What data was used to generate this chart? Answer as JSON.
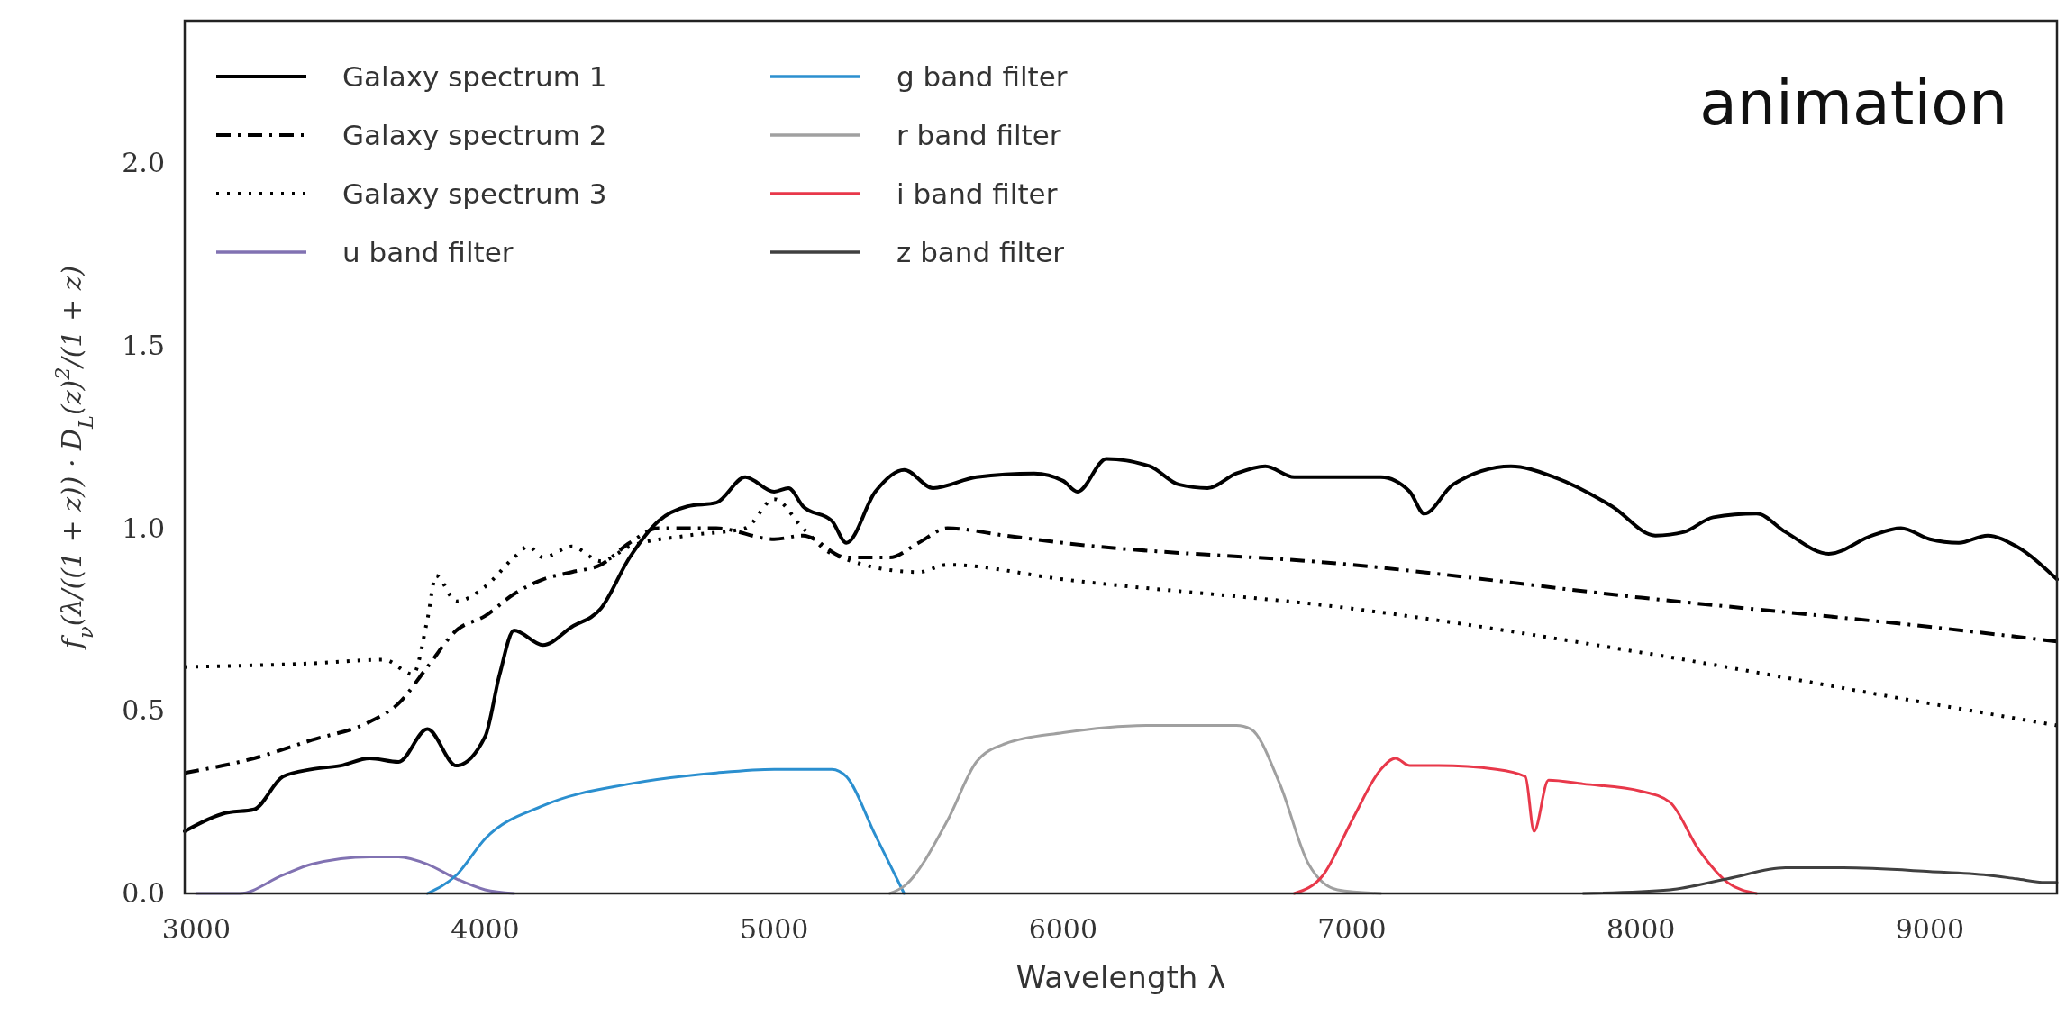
{
  "chart_data": {
    "type": "line",
    "xlabel": "Wavelength λ",
    "ylabel": "f$_{ν}$(λ/((1 + z)) · D$_{L}$(z)$^{2}$/(1 + z)",
    "annotations": [
      "animation"
    ],
    "xlim": [
      2960,
      9440
    ],
    "ylim": [
      0,
      2.39
    ],
    "xticks": [
      3000,
      4000,
      5000,
      6000,
      7000,
      8000,
      9000
    ],
    "yticks": [
      {
        "value": 0,
        "label": "0.0"
      },
      {
        "value": 0.5,
        "label": "0.5"
      },
      {
        "value": 1,
        "label": "1.0"
      },
      {
        "value": 1.5,
        "label": "1.5"
      },
      {
        "value": 2,
        "label": "2.0"
      }
    ],
    "grid": false,
    "legend": "top left",
    "series": [
      {
        "name": "Galaxy spectrum 1",
        "color": "#000000",
        "line_style": "solid",
        "x": [
          2960,
          3100,
          3200,
          3300,
          3400,
          3500,
          3600,
          3700,
          3800,
          3900,
          4000,
          4050,
          4100,
          4200,
          4300,
          4400,
          4500,
          4600,
          4700,
          4800,
          4900,
          5000,
          5050,
          5100,
          5200,
          5250,
          5350,
          5450,
          5550,
          5700,
          5900,
          6000,
          6050,
          6150,
          6300,
          6400,
          6500,
          6600,
          6700,
          6800,
          7000,
          7100,
          7200,
          7250,
          7350,
          7550,
          7700,
          7900,
          8050,
          8150,
          8250,
          8400,
          8500,
          8650,
          8800,
          8900,
          9000,
          9100,
          9200,
          9300,
          9440
        ],
        "values": [
          0.17,
          0.22,
          0.23,
          0.32,
          0.34,
          0.35,
          0.37,
          0.36,
          0.45,
          0.35,
          0.43,
          0.6,
          0.72,
          0.68,
          0.73,
          0.78,
          0.92,
          1.02,
          1.06,
          1.07,
          1.14,
          1.1,
          1.11,
          1.06,
          1.02,
          0.96,
          1.1,
          1.16,
          1.11,
          1.14,
          1.15,
          1.13,
          1.1,
          1.19,
          1.17,
          1.12,
          1.11,
          1.15,
          1.17,
          1.14,
          1.14,
          1.14,
          1.1,
          1.04,
          1.12,
          1.17,
          1.14,
          1.06,
          0.98,
          0.99,
          1.03,
          1.04,
          0.99,
          0.93,
          0.98,
          1.0,
          0.97,
          0.96,
          0.98,
          0.95,
          0.86
        ]
      },
      {
        "name": "Galaxy spectrum 2",
        "color": "#000000",
        "line_style": "dashdot",
        "x": [
          2960,
          3200,
          3400,
          3600,
          3700,
          3800,
          3900,
          4000,
          4100,
          4200,
          4300,
          4400,
          4500,
          4600,
          4800,
          5000,
          5100,
          5250,
          5400,
          5500,
          5600,
          5800,
          6000,
          7000,
          8000,
          9000,
          9440
        ],
        "values": [
          0.33,
          0.37,
          0.42,
          0.47,
          0.52,
          0.62,
          0.72,
          0.76,
          0.82,
          0.86,
          0.88,
          0.9,
          0.96,
          1.0,
          1.0,
          0.97,
          0.98,
          0.92,
          0.92,
          0.96,
          1.0,
          0.98,
          0.96,
          0.9,
          0.81,
          0.73,
          0.69
        ]
      },
      {
        "name": "Galaxy spectrum 3",
        "color": "#000000",
        "line_style": "dotted",
        "x": [
          2960,
          3400,
          3650,
          3750,
          3800,
          3830,
          3900,
          4000,
          4100,
          4150,
          4200,
          4300,
          4400,
          4500,
          4700,
          4900,
          5000,
          5100,
          5200,
          5500,
          5600,
          6000,
          7000,
          8000,
          9000,
          9440
        ],
        "values": [
          0.62,
          0.63,
          0.64,
          0.6,
          0.75,
          0.87,
          0.8,
          0.84,
          0.92,
          0.95,
          0.92,
          0.95,
          0.91,
          0.95,
          0.98,
          1.0,
          1.08,
          1.0,
          0.93,
          0.88,
          0.9,
          0.86,
          0.78,
          0.66,
          0.52,
          0.46
        ]
      },
      {
        "name": "u band filter",
        "color": "#8172b2",
        "line_style": "solid",
        "x": [
          3000,
          3150,
          3300,
          3400,
          3600,
          3700,
          3800,
          3900,
          4000,
          4100
        ],
        "values": [
          0,
          0,
          0.05,
          0.08,
          0.1,
          0.1,
          0.08,
          0.04,
          0.01,
          0
        ]
      },
      {
        "name": "g band filter",
        "color": "#2b8fcf",
        "line_style": "solid",
        "x": [
          3800,
          3900,
          4000,
          4200,
          4500,
          4800,
          5000,
          5200,
          5250,
          5350,
          5450
        ],
        "values": [
          0,
          0.05,
          0.15,
          0.24,
          0.3,
          0.33,
          0.34,
          0.34,
          0.32,
          0.16,
          0
        ]
      },
      {
        "name": "r band filter",
        "color": "#a0a0a0",
        "line_style": "solid",
        "x": [
          5400,
          5450,
          5600,
          5700,
          5800,
          6000,
          6300,
          6600,
          6650,
          6750,
          6850,
          6950,
          7100
        ],
        "values": [
          0,
          0.02,
          0.2,
          0.36,
          0.41,
          0.44,
          0.46,
          0.46,
          0.45,
          0.3,
          0.08,
          0.01,
          0
        ]
      },
      {
        "name": "i band filter",
        "color": "#e8384a",
        "line_style": "solid",
        "x": [
          6800,
          6900,
          7000,
          7100,
          7150,
          7200,
          7300,
          7500,
          7600,
          7630,
          7680,
          7800,
          8000,
          8100,
          8200,
          8300,
          8400
        ],
        "values": [
          0,
          0.05,
          0.2,
          0.34,
          0.37,
          0.35,
          0.35,
          0.34,
          0.32,
          0.17,
          0.31,
          0.3,
          0.28,
          0.25,
          0.12,
          0.03,
          0
        ]
      },
      {
        "name": "z band filter",
        "color": "#404040",
        "line_style": "solid",
        "x": [
          7800,
          8100,
          8300,
          8500,
          8700,
          9000,
          9200,
          9300,
          9400,
          9440
        ],
        "values": [
          0,
          0.01,
          0.04,
          0.07,
          0.07,
          0.06,
          0.05,
          0.04,
          0.03,
          0.03
        ]
      }
    ]
  }
}
